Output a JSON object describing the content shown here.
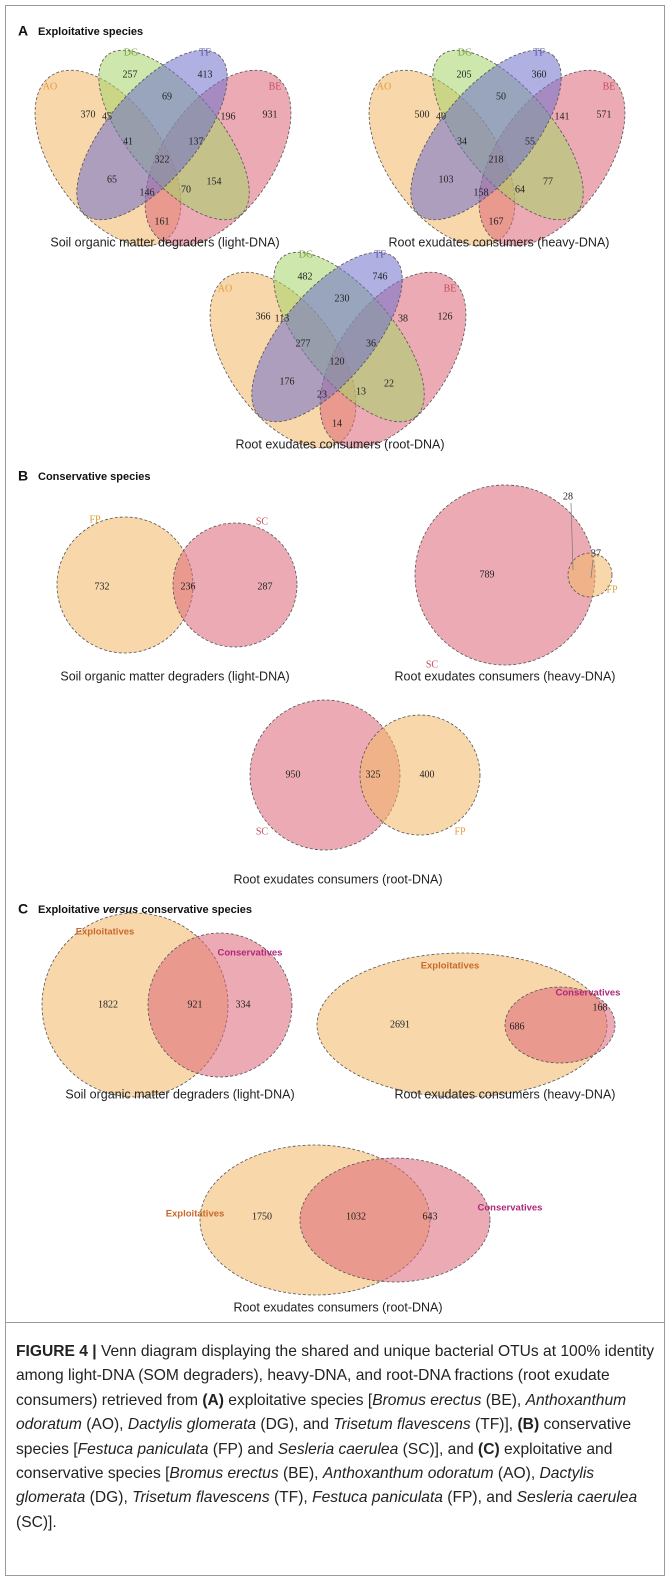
{
  "panels": [
    {
      "letter": "A",
      "title": [
        "Exploitative species"
      ],
      "diagrams": [
        {
          "sets": [
            "AO",
            "DG",
            "TF",
            "BE"
          ],
          "regions": [
            370,
            257,
            413,
            931,
            45,
            69,
            196,
            41,
            137,
            322,
            65,
            154,
            146,
            70,
            161
          ],
          "subtitle": "Soil organic matter degraders (light-DNA)"
        },
        {
          "sets": [
            "AO",
            "DG",
            "TF",
            "BE"
          ],
          "regions": [
            500,
            205,
            360,
            571,
            40,
            50,
            141,
            34,
            55,
            218,
            103,
            77,
            158,
            64,
            167
          ],
          "subtitle": "Root exudates consumers (heavy-DNA)"
        },
        {
          "sets": [
            "AO",
            "DG",
            "TF",
            "BE"
          ],
          "regions": [
            366,
            482,
            746,
            126,
            113,
            230,
            38,
            277,
            36,
            120,
            176,
            22,
            23,
            13,
            14
          ],
          "subtitle": "Root exudates consumers (root-DNA)"
        }
      ]
    },
    {
      "letter": "B",
      "title": [
        "Conservative species"
      ],
      "diagrams": [
        {
          "sets": [
            "FP",
            "SC"
          ],
          "regions": [
            732,
            236,
            287
          ],
          "subtitle": "Soil organic matter degraders (light-DNA)"
        },
        {
          "sets": [
            "FP",
            "SC"
          ],
          "regions": [
            789,
            28,
            37
          ],
          "subtitle": "Root exudates consumers (heavy-DNA)"
        },
        {
          "sets": [
            "FP",
            "SC"
          ],
          "regions": [
            950,
            325,
            400
          ],
          "subtitle": "Root exudates consumers (root-DNA)"
        }
      ]
    },
    {
      "letter": "C",
      "title": [
        "Exploitative ",
        "versus",
        " conservative species"
      ],
      "diagrams": [
        {
          "sets": [
            "Exploitatives",
            "Conservatives"
          ],
          "regions": [
            1822,
            921,
            334
          ],
          "subtitle": "Soil organic matter degraders (light-DNA)"
        },
        {
          "sets": [
            "Exploitatives",
            "Conservatives"
          ],
          "regions": [
            2691,
            686,
            168
          ],
          "subtitle": "Root exudates consumers (heavy-DNA)"
        },
        {
          "sets": [
            "Exploitatives",
            "Conservatives"
          ],
          "regions": [
            1750,
            1032,
            643
          ],
          "subtitle": "Root exudates consumers (root-DNA)"
        }
      ]
    }
  ],
  "caption": {
    "parts": [
      "FIGURE 4 |",
      " Venn diagram displaying the shared and unique bacterial OTUs at 100% identity among light-DNA (SOM degraders), heavy-DNA, and root-DNA fractions (root exudate consumers) retrieved from ",
      "(A)",
      " exploitative species [",
      "Bromus erectus",
      " (BE), ",
      "Anthoxanthum odoratum",
      " (AO), ",
      "Dactylis glomerata",
      " (DG), and ",
      "Trisetum flavescens",
      " (TF)], ",
      "(B)",
      " conservative species [",
      "Festuca paniculata",
      " (FP) and ",
      "Sesleria caerulea",
      " (SC)], and ",
      "(C)",
      " exploitative and conservative species [",
      "Bromus erectus",
      " (BE), ",
      "Anthoxanthum odoratum",
      " (AO), ",
      "Dactylis glomerata",
      " (DG), ",
      "Trisetum flavescens",
      " (TF), ",
      "Festuca paniculata",
      " (FP), and ",
      "Sesleria caerulea",
      " (SC)]."
    ]
  }
}
